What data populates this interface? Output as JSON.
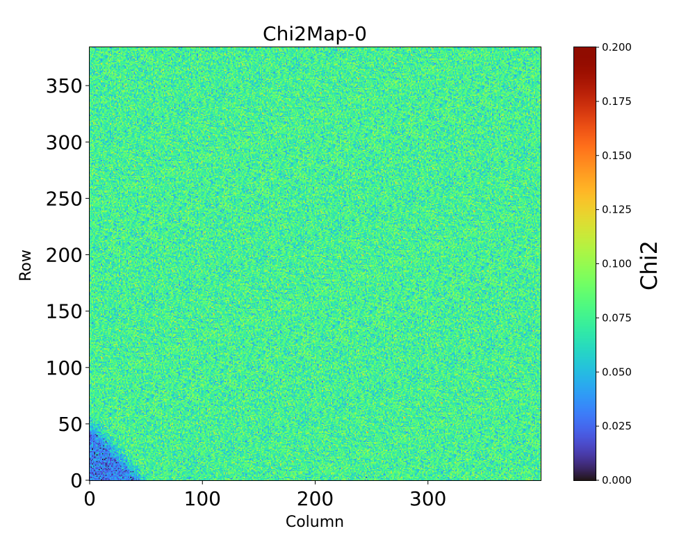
{
  "chart_data": {
    "type": "heatmap",
    "title": "Chi2Map-0",
    "xlabel": "Column",
    "ylabel": "Row",
    "xlim": [
      0,
      400
    ],
    "ylim": [
      0,
      384
    ],
    "x_ticks": [
      0,
      100,
      200,
      300
    ],
    "y_ticks": [
      0,
      50,
      100,
      150,
      200,
      250,
      300,
      350
    ],
    "colormap": "turbo",
    "colorbar": {
      "label": "Chi2",
      "range": [
        0.0,
        0.2
      ],
      "ticks": [
        "0.000",
        "0.025",
        "0.050",
        "0.075",
        "0.100",
        "0.125",
        "0.150",
        "0.175",
        "0.200"
      ]
    },
    "background_mean": 0.075,
    "background_spread": 0.015,
    "low_region": {
      "description_shape": "triangle",
      "corner": "bottom-left",
      "extent_columns": 55,
      "extent_rows": 60,
      "mean": 0.03
    }
  }
}
